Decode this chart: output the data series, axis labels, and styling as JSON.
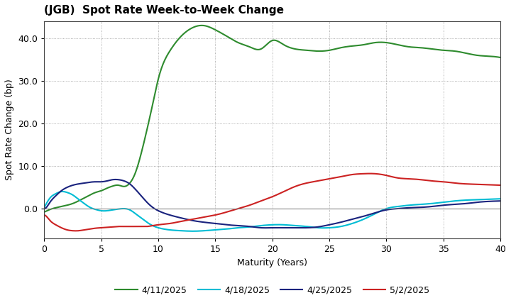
{
  "title": "(JGB)  Spot Rate Week-to-Week Change",
  "xlabel": "Maturity (Years)",
  "ylabel": "Spot Rate Change (bp)",
  "xlim": [
    0,
    40
  ],
  "ylim": [
    -7,
    44
  ],
  "yticks": [
    0.0,
    10.0,
    20.0,
    30.0,
    40.0
  ],
  "xticks": [
    0,
    5,
    10,
    15,
    20,
    25,
    30,
    35,
    40
  ],
  "background_color": "#ffffff",
  "grid_color": "#999999",
  "series": [
    {
      "label": "4/11/2025",
      "color": "#2e8b2e",
      "x": [
        0,
        0.25,
        0.5,
        1,
        1.5,
        2,
        2.5,
        3,
        3.5,
        4,
        4.5,
        5,
        5.5,
        6,
        6.5,
        7,
        7.5,
        8,
        8.5,
        9,
        9.5,
        10,
        11,
        12,
        13,
        14,
        15,
        16,
        17,
        18,
        19,
        20,
        21,
        22,
        23,
        24,
        25,
        26,
        27,
        28,
        29,
        30,
        31,
        32,
        33,
        34,
        35,
        36,
        37,
        38,
        39,
        40
      ],
      "y": [
        -0.8,
        -0.5,
        -0.2,
        0.2,
        0.5,
        0.8,
        1.2,
        1.8,
        2.5,
        3.2,
        3.8,
        4.2,
        4.8,
        5.3,
        5.5,
        5.2,
        6.0,
        8.5,
        13.0,
        18.5,
        24.5,
        30.5,
        37.0,
        40.5,
        42.5,
        43.0,
        42.0,
        40.5,
        39.0,
        38.0,
        37.5,
        39.5,
        38.5,
        37.5,
        37.2,
        37.0,
        37.2,
        37.8,
        38.2,
        38.5,
        39.0,
        39.0,
        38.5,
        38.0,
        37.8,
        37.5,
        37.2,
        37.0,
        36.5,
        36.0,
        35.8,
        35.5
      ]
    },
    {
      "label": "4/18/2025",
      "color": "#00bcd4",
      "x": [
        0,
        0.25,
        0.5,
        1,
        1.5,
        2,
        2.5,
        3,
        3.5,
        4,
        4.5,
        5,
        5.5,
        6,
        6.5,
        7,
        7.5,
        8,
        8.5,
        9,
        9.5,
        10,
        11,
        12,
        13,
        14,
        15,
        16,
        17,
        18,
        19,
        20,
        21,
        22,
        23,
        24,
        25,
        26,
        27,
        28,
        29,
        30,
        31,
        32,
        33,
        34,
        35,
        36,
        37,
        38,
        39,
        40
      ],
      "y": [
        0.3,
        1.5,
        2.5,
        3.5,
        4.0,
        3.8,
        3.2,
        2.2,
        1.2,
        0.3,
        -0.2,
        -0.5,
        -0.5,
        -0.3,
        -0.1,
        0.0,
        -0.3,
        -1.2,
        -2.2,
        -3.2,
        -4.0,
        -4.5,
        -5.0,
        -5.2,
        -5.3,
        -5.2,
        -5.0,
        -4.8,
        -4.5,
        -4.3,
        -4.0,
        -3.8,
        -3.8,
        -4.0,
        -4.2,
        -4.5,
        -4.5,
        -4.2,
        -3.5,
        -2.5,
        -1.2,
        0.0,
        0.5,
        0.8,
        1.0,
        1.2,
        1.5,
        1.8,
        2.0,
        2.1,
        2.2,
        2.3
      ]
    },
    {
      "label": "4/25/2025",
      "color": "#1a237e",
      "x": [
        0,
        0.25,
        0.5,
        1,
        1.5,
        2,
        2.5,
        3,
        3.5,
        4,
        4.5,
        5,
        5.5,
        6,
        6.5,
        7,
        7.5,
        8,
        8.5,
        9,
        9.5,
        10,
        11,
        12,
        13,
        14,
        15,
        16,
        17,
        18,
        19,
        20,
        21,
        22,
        23,
        24,
        25,
        26,
        27,
        28,
        29,
        30,
        31,
        32,
        33,
        34,
        35,
        36,
        37,
        38,
        39,
        40
      ],
      "y": [
        0.0,
        0.5,
        1.5,
        3.0,
        4.2,
        5.0,
        5.5,
        5.8,
        6.0,
        6.2,
        6.3,
        6.3,
        6.5,
        6.8,
        6.8,
        6.5,
        5.8,
        4.5,
        3.0,
        1.5,
        0.3,
        -0.5,
        -1.5,
        -2.2,
        -2.8,
        -3.2,
        -3.5,
        -3.8,
        -4.0,
        -4.2,
        -4.5,
        -4.5,
        -4.5,
        -4.5,
        -4.5,
        -4.3,
        -3.8,
        -3.2,
        -2.5,
        -1.8,
        -1.0,
        -0.3,
        0.0,
        0.2,
        0.3,
        0.5,
        0.8,
        1.0,
        1.2,
        1.5,
        1.7,
        1.8
      ]
    },
    {
      "label": "5/2/2025",
      "color": "#cc2222",
      "x": [
        0,
        0.25,
        0.5,
        1,
        1.5,
        2,
        2.5,
        3,
        3.5,
        4,
        4.5,
        5,
        5.5,
        6,
        6.5,
        7,
        7.5,
        8,
        8.5,
        9,
        9.5,
        10,
        11,
        12,
        13,
        14,
        15,
        16,
        17,
        18,
        19,
        20,
        21,
        22,
        23,
        24,
        25,
        26,
        27,
        28,
        29,
        30,
        31,
        32,
        33,
        34,
        35,
        36,
        37,
        38,
        39,
        40
      ],
      "y": [
        -1.5,
        -2.0,
        -2.8,
        -3.8,
        -4.5,
        -5.0,
        -5.2,
        -5.2,
        -5.0,
        -4.8,
        -4.6,
        -4.5,
        -4.4,
        -4.3,
        -4.2,
        -4.2,
        -4.2,
        -4.2,
        -4.2,
        -4.2,
        -4.0,
        -3.8,
        -3.5,
        -3.0,
        -2.5,
        -2.0,
        -1.5,
        -0.8,
        0.0,
        0.8,
        1.8,
        2.8,
        4.0,
        5.2,
        6.0,
        6.5,
        7.0,
        7.5,
        8.0,
        8.2,
        8.2,
        7.8,
        7.2,
        7.0,
        6.8,
        6.5,
        6.3,
        6.0,
        5.8,
        5.7,
        5.6,
        5.5
      ]
    }
  ]
}
